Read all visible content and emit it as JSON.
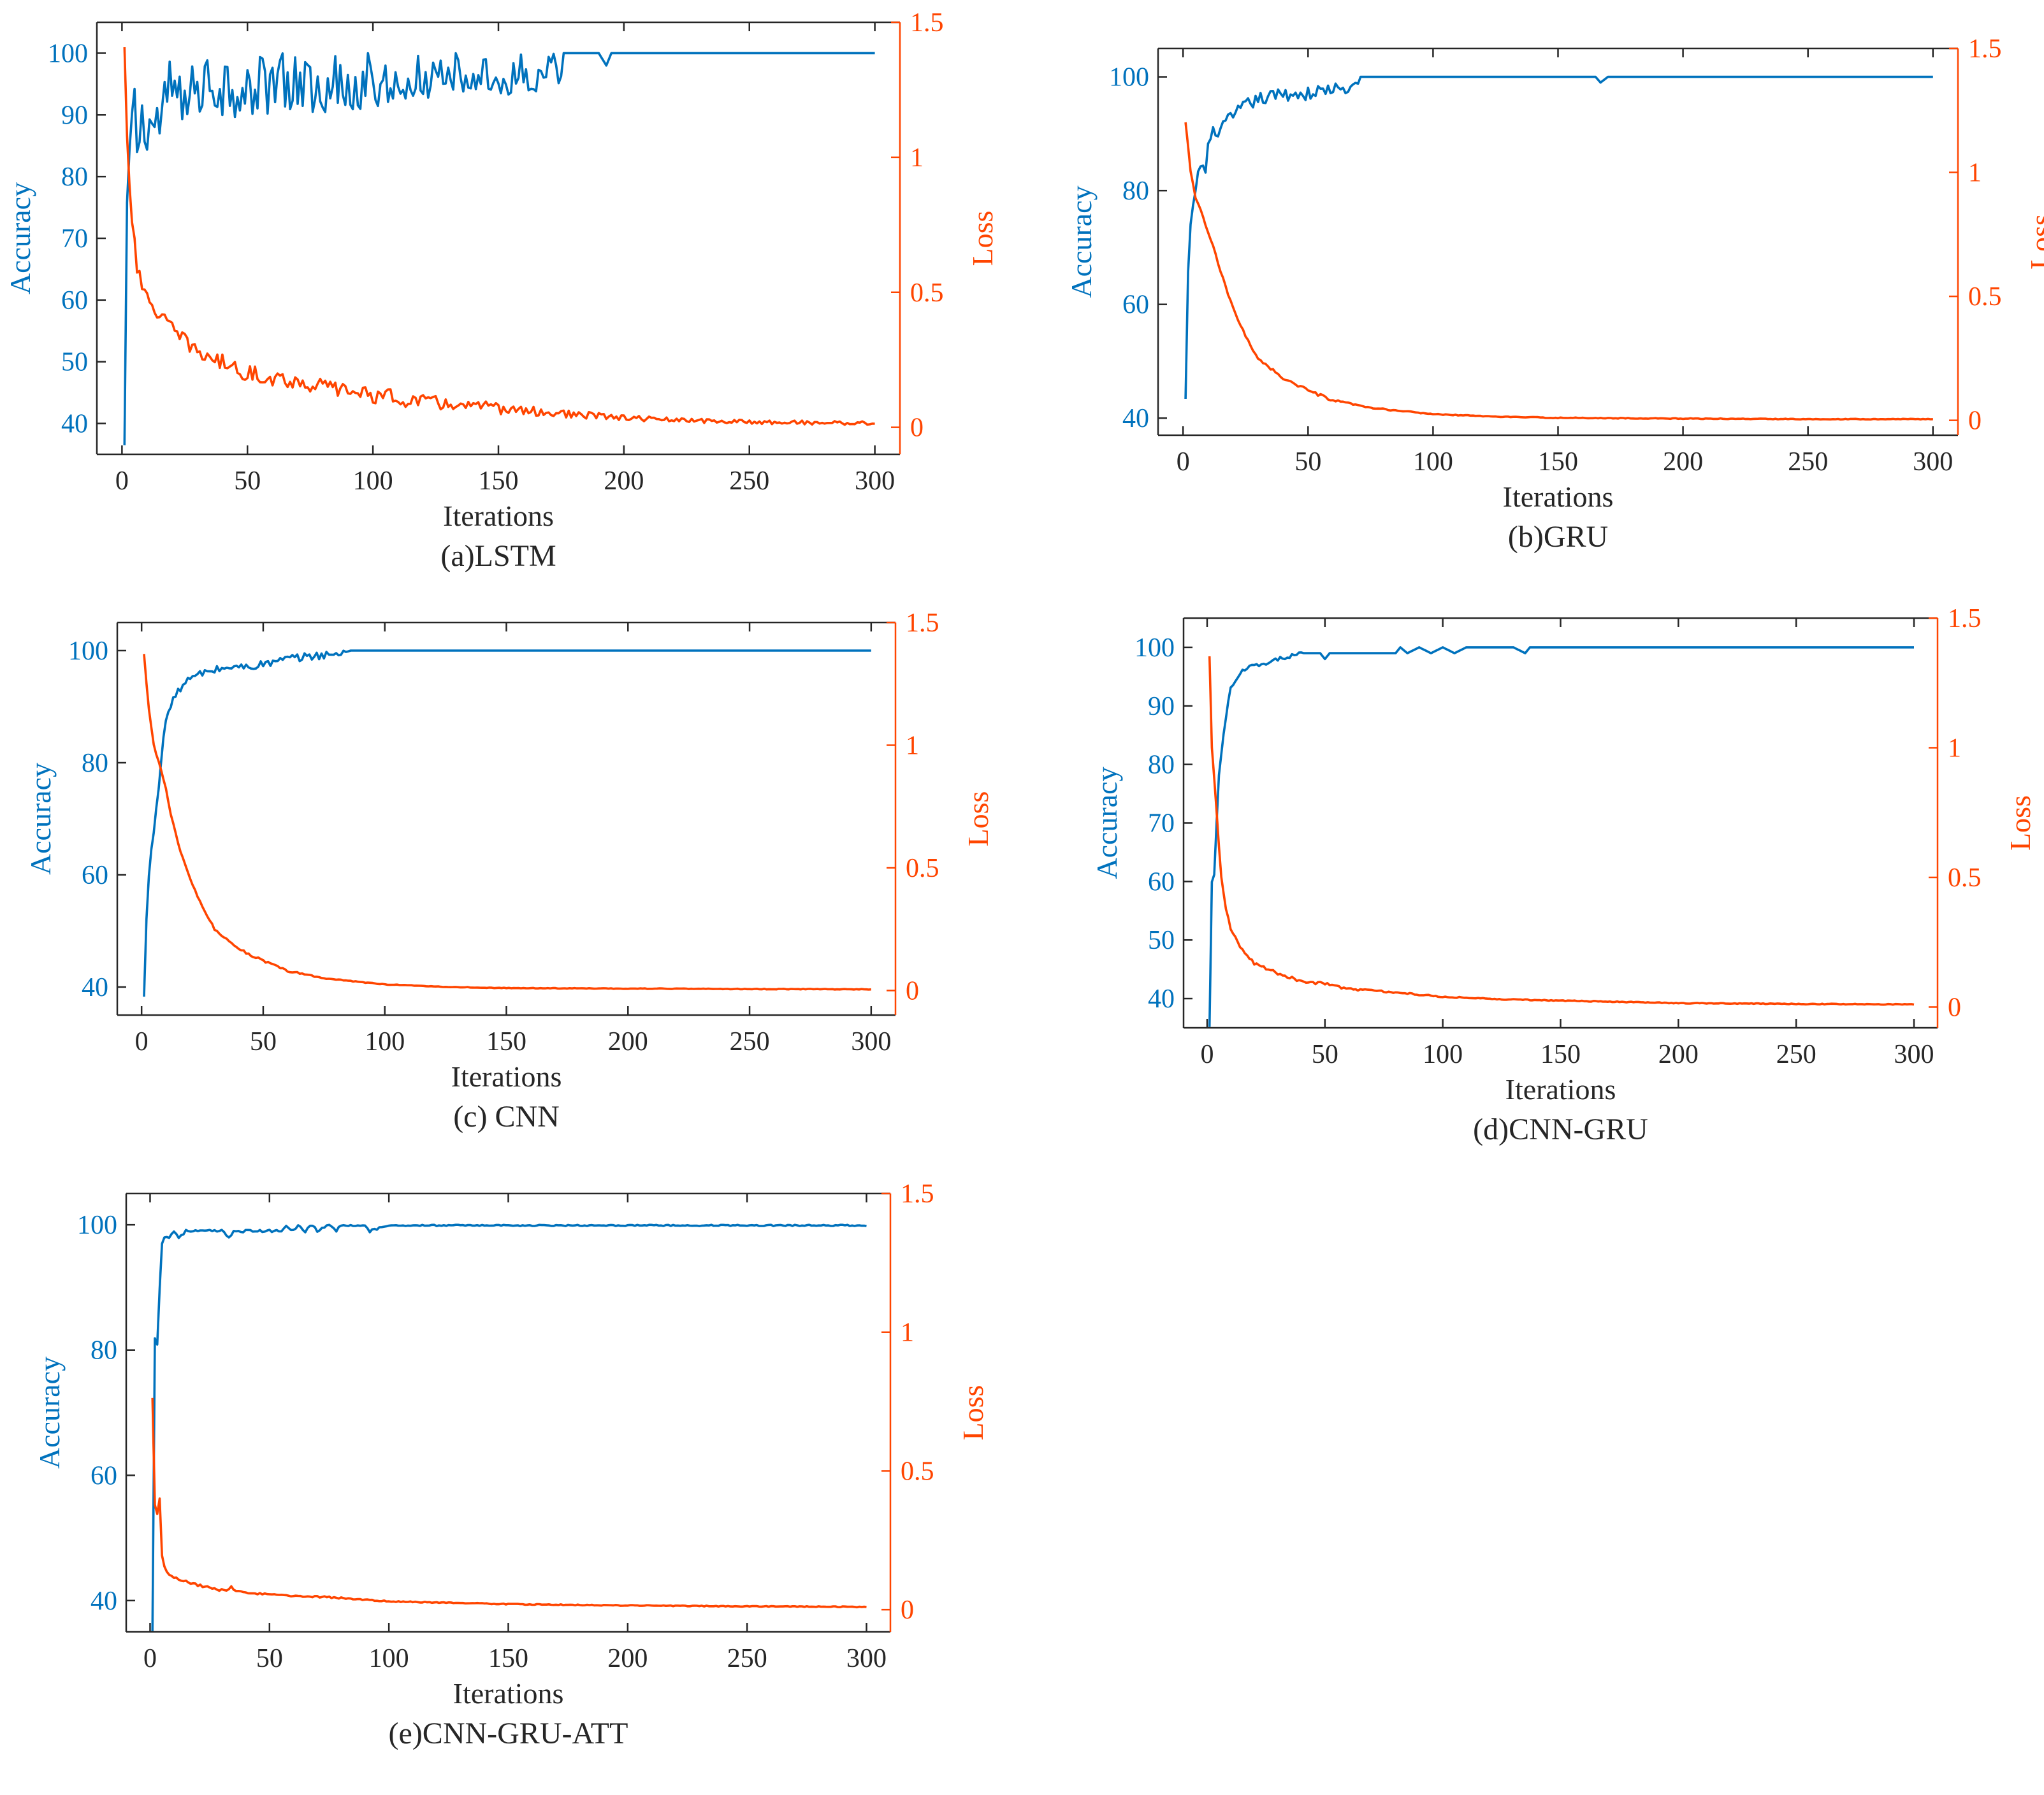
{
  "colors": {
    "accuracy": "#0072BD",
    "loss": "#FF4500",
    "axis": "#262626"
  },
  "chart_data": [
    {
      "type": "line",
      "caption": "(a)LSTM",
      "xlabel": "Iterations",
      "ylabel": "Accuracy",
      "y2label": "Loss",
      "xlim": [
        -10,
        310
      ],
      "ylim": [
        35,
        105
      ],
      "y2lim": [
        -0.1,
        1.5
      ],
      "xticks": [
        0,
        50,
        100,
        150,
        200,
        250,
        300
      ],
      "yticks": [
        40,
        50,
        60,
        70,
        80,
        90,
        100
      ],
      "y2ticks": [
        0,
        0.5,
        1,
        1.5
      ],
      "grid": false,
      "series": [
        {
          "axis": "left",
          "x": [
            1,
            2,
            3,
            4,
            5,
            6,
            8,
            10,
            12,
            15,
            18,
            20,
            25,
            30,
            40,
            50,
            60,
            70,
            80,
            90,
            100,
            110,
            120,
            130,
            140,
            150,
            160,
            170,
            175,
            180,
            190,
            193,
            195,
            200,
            250,
            300
          ],
          "y": [
            35,
            70,
            84,
            88,
            90,
            86,
            88,
            90,
            88,
            89,
            92,
            94,
            95,
            96,
            95,
            96,
            96,
            97,
            96,
            96,
            97,
            98,
            98,
            98,
            99,
            99,
            99,
            100,
            100,
            100,
            100,
            98,
            100,
            100,
            100,
            100
          ],
          "noise": 6,
          "noise_until": 175
        },
        {
          "axis": "right",
          "x": [
            1,
            2,
            3,
            4,
            5,
            6,
            8,
            10,
            15,
            20,
            30,
            50,
            75,
            100,
            125,
            150,
            175,
            200,
            225,
            250,
            300
          ],
          "y": [
            1.4,
            1.1,
            0.9,
            0.78,
            0.7,
            0.6,
            0.5,
            0.48,
            0.42,
            0.36,
            0.28,
            0.2,
            0.16,
            0.12,
            0.09,
            0.07,
            0.05,
            0.035,
            0.025,
            0.02,
            0.015
          ],
          "noise": 0.03
        }
      ]
    },
    {
      "type": "line",
      "caption": "(b)GRU",
      "xlabel": "Iterations",
      "ylabel": "Accuracy",
      "y2label": "Loss",
      "xlim": [
        -10,
        310
      ],
      "ylim": [
        37,
        105
      ],
      "y2lim": [
        -0.06,
        1.5
      ],
      "xticks": [
        0,
        50,
        100,
        150,
        200,
        250,
        300
      ],
      "yticks": [
        40,
        60,
        80,
        100
      ],
      "y2ticks": [
        0,
        0.5,
        1,
        1.5
      ],
      "grid": false,
      "series": [
        {
          "axis": "left",
          "x": [
            1,
            2,
            3,
            4,
            5,
            7,
            9,
            10,
            12,
            15,
            20,
            25,
            30,
            40,
            50,
            60,
            65,
            68,
            70,
            75,
            80,
            90,
            100,
            150,
            165,
            167,
            170,
            200,
            300
          ],
          "y": [
            43,
            65,
            73,
            78,
            80,
            85,
            83,
            88,
            90,
            91,
            93,
            95,
            96,
            97,
            97,
            98,
            97,
            99,
            100,
            100,
            100,
            100,
            100,
            100,
            100,
            99,
            100,
            100,
            100
          ],
          "noise": 1.2,
          "noise_until": 70
        },
        {
          "axis": "right",
          "x": [
            1,
            2,
            3,
            5,
            8,
            10,
            12,
            15,
            20,
            25,
            30,
            40,
            50,
            60,
            75,
            100,
            125,
            150,
            200,
            250,
            300
          ],
          "y": [
            1.2,
            1.1,
            1.0,
            0.9,
            0.82,
            0.76,
            0.7,
            0.6,
            0.45,
            0.34,
            0.25,
            0.17,
            0.12,
            0.08,
            0.05,
            0.025,
            0.015,
            0.01,
            0.007,
            0.005,
            0.005
          ],
          "noise": 0.006
        }
      ]
    },
    {
      "type": "line",
      "caption": "(c)  CNN",
      "xlabel": "Iterations",
      "ylabel": "Accuracy",
      "y2label": "Loss",
      "xlim": [
        -10,
        310
      ],
      "ylim": [
        35,
        105
      ],
      "y2lim": [
        -0.1,
        1.5
      ],
      "xticks": [
        0,
        50,
        100,
        150,
        200,
        250,
        300
      ],
      "yticks": [
        40,
        60,
        80,
        100
      ],
      "y2ticks": [
        0,
        0.5,
        1,
        1.5
      ],
      "grid": false,
      "series": [
        {
          "axis": "left",
          "x": [
            1,
            2,
            3,
            5,
            7,
            9,
            10,
            12,
            15,
            20,
            25,
            30,
            35,
            40,
            50,
            55,
            60,
            70,
            80,
            85,
            90,
            100,
            300
          ],
          "y": [
            38,
            52,
            60,
            68,
            76,
            84,
            88,
            90,
            93,
            95,
            96,
            96.5,
            97,
            97,
            97.5,
            98,
            98.5,
            99,
            99.5,
            100,
            100,
            100,
            100
          ],
          "noise": 0.7,
          "noise_until": 85
        },
        {
          "axis": "right",
          "x": [
            1,
            2,
            3,
            5,
            8,
            10,
            12,
            15,
            20,
            25,
            30,
            40,
            50,
            60,
            75,
            100,
            125,
            150,
            200,
            250,
            300
          ],
          "y": [
            1.37,
            1.25,
            1.15,
            1.0,
            0.9,
            0.82,
            0.72,
            0.6,
            0.45,
            0.34,
            0.25,
            0.17,
            0.12,
            0.08,
            0.05,
            0.025,
            0.015,
            0.01,
            0.008,
            0.006,
            0.005
          ],
          "noise": 0.005
        }
      ]
    },
    {
      "type": "line",
      "caption": "(d)CNN-GRU",
      "xlabel": "Iterations",
      "ylabel": "Accuracy",
      "y2label": "Loss",
      "xlim": [
        -10,
        310
      ],
      "ylim": [
        35,
        105
      ],
      "y2lim": [
        -0.08,
        1.5
      ],
      "xticks": [
        0,
        50,
        100,
        150,
        200,
        250,
        300
      ],
      "yticks": [
        40,
        50,
        60,
        70,
        80,
        90,
        100
      ],
      "y2ticks": [
        0,
        0.5,
        1,
        1.5
      ],
      "grid": false,
      "series": [
        {
          "axis": "left",
          "x": [
            1,
            2,
            3,
            4,
            5,
            7,
            9,
            10,
            12,
            15,
            20,
            25,
            30,
            35,
            40,
            48,
            50,
            52,
            60,
            70,
            80,
            82,
            85,
            90,
            95,
            100,
            105,
            110,
            115,
            120,
            130,
            135,
            137,
            140,
            150,
            200,
            300
          ],
          "y": [
            35,
            60,
            61,
            70,
            78,
            85,
            91,
            93,
            94,
            96,
            97,
            97,
            98,
            98.5,
            99,
            99,
            98,
            99,
            99,
            99,
            99,
            100,
            99,
            100,
            99,
            100,
            99,
            100,
            100,
            100,
            100,
            99,
            100,
            100,
            100,
            100,
            100
          ],
          "noise": 0.3,
          "noise_until": 40
        },
        {
          "axis": "right",
          "x": [
            1,
            2,
            3,
            4,
            5,
            6,
            8,
            10,
            15,
            20,
            30,
            40,
            50,
            60,
            75,
            100,
            125,
            150,
            175,
            200,
            250,
            300
          ],
          "y": [
            1.35,
            1.0,
            0.88,
            0.75,
            0.62,
            0.5,
            0.38,
            0.3,
            0.22,
            0.17,
            0.13,
            0.1,
            0.09,
            0.07,
            0.06,
            0.04,
            0.03,
            0.025,
            0.02,
            0.015,
            0.012,
            0.01
          ],
          "noise": 0.006
        }
      ]
    },
    {
      "type": "line",
      "caption": "(e)CNN-GRU-ATT",
      "xlabel": "Iterations",
      "ylabel": "Accuracy",
      "y2label": "Loss",
      "xlim": [
        -10,
        310
      ],
      "ylim": [
        35,
        105
      ],
      "y2lim": [
        -0.08,
        1.5
      ],
      "xticks": [
        0,
        50,
        100,
        150,
        200,
        250,
        300
      ],
      "yticks": [
        40,
        60,
        80,
        100
      ],
      "y2ticks": [
        0,
        0.5,
        1,
        1.5
      ],
      "grid": false,
      "series": [
        {
          "axis": "left",
          "x": [
            1,
            2,
            3,
            4,
            5,
            6,
            8,
            10,
            12,
            15,
            20,
            25,
            30,
            33,
            35,
            40,
            50,
            55,
            57,
            60,
            62,
            65,
            68,
            70,
            75,
            78,
            80,
            85,
            88,
            90,
            92,
            100,
            300
          ],
          "y": [
            35,
            82,
            81,
            90,
            97,
            98,
            98,
            99,
            98,
            99,
            99,
            99,
            99,
            98,
            99,
            99,
            99,
            99,
            100,
            99,
            100,
            99,
            100,
            99,
            100,
            99,
            100,
            100,
            100,
            100,
            99,
            100,
            100
          ],
          "noise": 0.2
        },
        {
          "axis": "right",
          "x": [
            1,
            2,
            3,
            4,
            5,
            6,
            7,
            8,
            10,
            15,
            20,
            30,
            33,
            34,
            35,
            40,
            50,
            60,
            75,
            100,
            150,
            200,
            250,
            300
          ],
          "y": [
            0.76,
            0.38,
            0.35,
            0.4,
            0.2,
            0.16,
            0.14,
            0.13,
            0.12,
            0.1,
            0.09,
            0.07,
            0.07,
            0.08,
            0.07,
            0.06,
            0.055,
            0.05,
            0.045,
            0.03,
            0.02,
            0.015,
            0.012,
            0.01
          ],
          "noise": 0.006
        }
      ]
    }
  ]
}
